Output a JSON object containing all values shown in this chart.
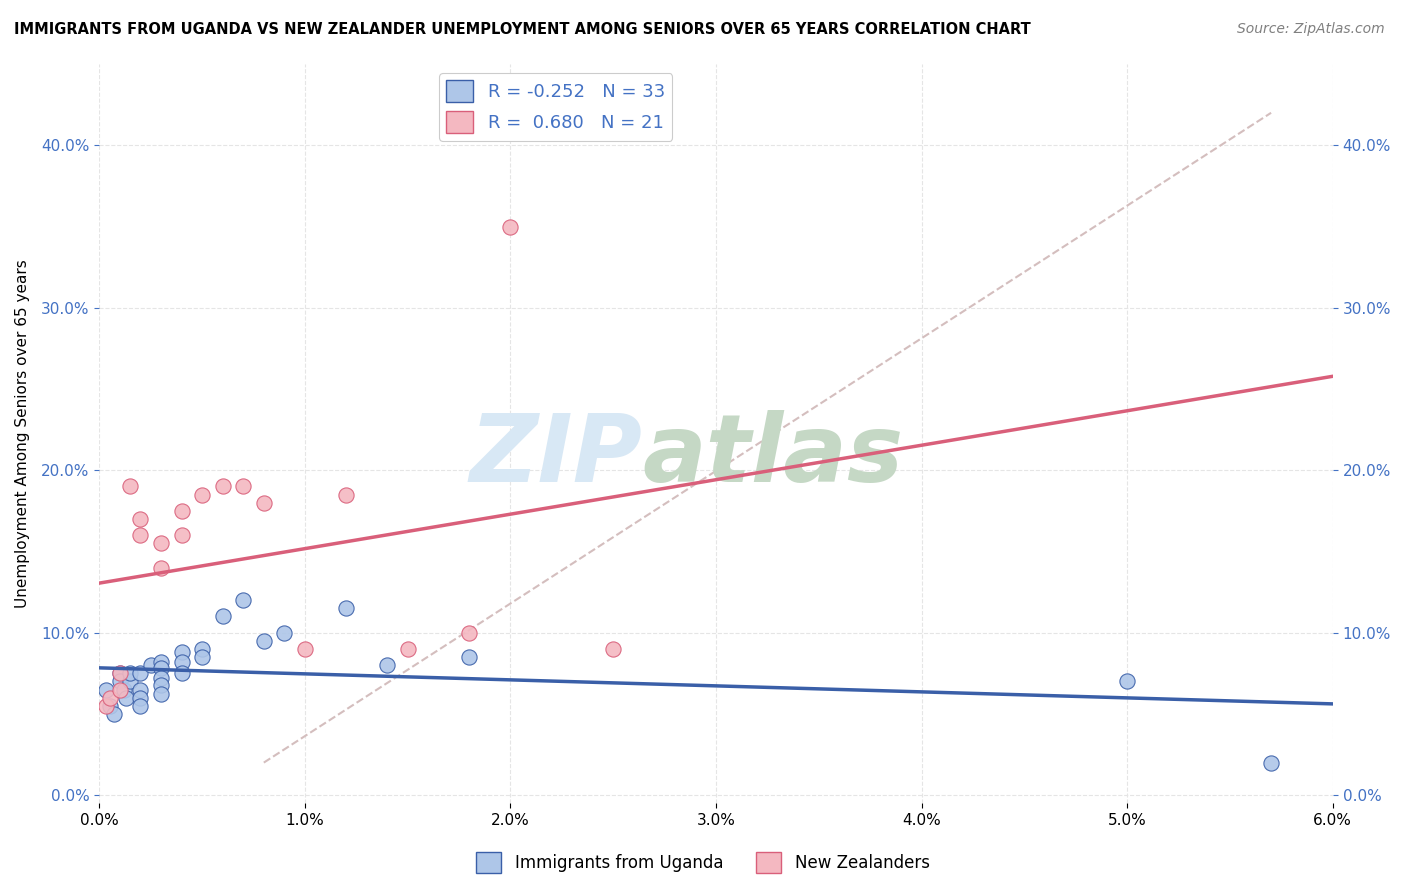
{
  "title": "IMMIGRANTS FROM UGANDA VS NEW ZEALANDER UNEMPLOYMENT AMONG SENIORS OVER 65 YEARS CORRELATION CHART",
  "source": "Source: ZipAtlas.com",
  "ylabel": "Unemployment Among Seniors over 65 years",
  "legend_blue_label": "Immigrants from Uganda",
  "legend_pink_label": "New Zealanders",
  "R_blue": -0.252,
  "N_blue": 33,
  "R_pink": 0.68,
  "N_pink": 21,
  "xlim": [
    0.0,
    0.06
  ],
  "ylim": [
    -0.005,
    0.45
  ],
  "xticks": [
    0.0,
    0.01,
    0.02,
    0.03,
    0.04,
    0.05,
    0.06
  ],
  "xtick_labels": [
    "0.0%",
    "1.0%",
    "2.0%",
    "3.0%",
    "4.0%",
    "5.0%",
    "6.0%"
  ],
  "yticks": [
    0.0,
    0.1,
    0.2,
    0.3,
    0.4
  ],
  "ytick_labels": [
    "0.0%",
    "10.0%",
    "20.0%",
    "30.0%",
    "40.0%"
  ],
  "blue_scatter_x": [
    0.0003,
    0.0005,
    0.0007,
    0.001,
    0.001,
    0.0012,
    0.0013,
    0.0015,
    0.0015,
    0.002,
    0.002,
    0.002,
    0.002,
    0.0025,
    0.003,
    0.003,
    0.003,
    0.003,
    0.003,
    0.004,
    0.004,
    0.004,
    0.005,
    0.005,
    0.006,
    0.007,
    0.008,
    0.009,
    0.012,
    0.014,
    0.018,
    0.05,
    0.057
  ],
  "blue_scatter_y": [
    0.065,
    0.055,
    0.05,
    0.075,
    0.07,
    0.065,
    0.06,
    0.07,
    0.075,
    0.075,
    0.065,
    0.06,
    0.055,
    0.08,
    0.082,
    0.078,
    0.072,
    0.068,
    0.062,
    0.088,
    0.082,
    0.075,
    0.09,
    0.085,
    0.11,
    0.12,
    0.095,
    0.1,
    0.115,
    0.08,
    0.085,
    0.07,
    0.02
  ],
  "pink_scatter_x": [
    0.0003,
    0.0005,
    0.001,
    0.001,
    0.0015,
    0.002,
    0.002,
    0.003,
    0.003,
    0.004,
    0.004,
    0.005,
    0.006,
    0.007,
    0.008,
    0.01,
    0.012,
    0.015,
    0.018,
    0.02,
    0.025
  ],
  "pink_scatter_y": [
    0.055,
    0.06,
    0.075,
    0.065,
    0.19,
    0.17,
    0.16,
    0.155,
    0.14,
    0.16,
    0.175,
    0.185,
    0.19,
    0.19,
    0.18,
    0.09,
    0.185,
    0.09,
    0.1,
    0.35,
    0.09
  ],
  "bg_color": "#ffffff",
  "blue_dot_color": "#aec6e8",
  "pink_dot_color": "#f4b8c1",
  "blue_line_color": "#3a5fa8",
  "pink_line_color": "#d95f7a",
  "diag_line_color": "#d4bebe",
  "tick_color": "#4472c4",
  "grid_color": "#e5e5e5",
  "watermark_zip_color": "#d8e8f5",
  "watermark_atlas_color": "#c5d8c5"
}
